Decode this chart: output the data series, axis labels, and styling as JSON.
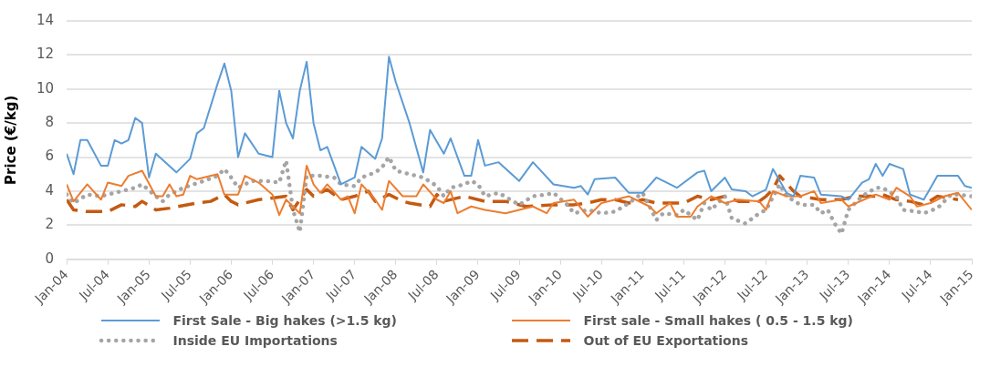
{
  "chart_data": {
    "type": "line",
    "ylabel": "Price (€/kg)",
    "ylim": [
      0,
      14
    ],
    "yticks": [
      0,
      2,
      4,
      6,
      8,
      10,
      12,
      14
    ],
    "xlim": [
      "2004-01",
      "2015-01"
    ],
    "xticks": [
      {
        "value": "2004-01",
        "label": "Jan-04"
      },
      {
        "value": "2004-07",
        "label": "Jul-04"
      },
      {
        "value": "2005-01",
        "label": "Jan-05"
      },
      {
        "value": "2005-07",
        "label": "Jul-05"
      },
      {
        "value": "2006-01",
        "label": "Jan-06"
      },
      {
        "value": "2006-07",
        "label": "Jul-06"
      },
      {
        "value": "2007-01",
        "label": "Jan-07"
      },
      {
        "value": "2007-07",
        "label": "Jul-07"
      },
      {
        "value": "2008-01",
        "label": "Jan-08"
      },
      {
        "value": "2008-07",
        "label": "Jul-08"
      },
      {
        "value": "2009-01",
        "label": "Jan-09"
      },
      {
        "value": "2009-07",
        "label": "Jul-09"
      },
      {
        "value": "2010-01",
        "label": "Jan-10"
      },
      {
        "value": "2010-07",
        "label": "Jul-10"
      },
      {
        "value": "2011-01",
        "label": "Jan-11"
      },
      {
        "value": "2011-07",
        "label": "Jul-11"
      },
      {
        "value": "2012-01",
        "label": "Jan-12"
      },
      {
        "value": "2012-07",
        "label": "Jul-12"
      },
      {
        "value": "2013-01",
        "label": "Jan-13"
      },
      {
        "value": "2013-07",
        "label": "Jul-13"
      },
      {
        "value": "2014-01",
        "label": "Jan-14"
      },
      {
        "value": "2014-07",
        "label": "Jul-14"
      },
      {
        "value": "2015-01",
        "label": "Jan-15"
      }
    ],
    "grid": "y",
    "legend": "bottom",
    "marker": "none",
    "series": [
      {
        "name": "First Sale - Big hakes (>1.5 kg)",
        "color": "#5b9bd5",
        "line_style": "solid",
        "x": [
          "2004-01",
          "2004-02",
          "2004-03",
          "2004-04",
          "2004-06",
          "2004-07",
          "2004-08",
          "2004-09",
          "2004-10",
          "2004-11",
          "2004-12",
          "2005-01",
          "2005-02",
          "2005-05",
          "2005-07",
          "2005-08",
          "2005-09",
          "2005-11",
          "2005-12",
          "2006-01",
          "2006-02",
          "2006-03",
          "2006-05",
          "2006-07",
          "2006-08",
          "2006-09",
          "2006-10",
          "2006-11",
          "2006-12",
          "2007-01",
          "2007-02",
          "2007-03",
          "2007-05",
          "2007-07",
          "2007-08",
          "2007-10",
          "2007-11",
          "2007-12",
          "2008-01",
          "2008-03",
          "2008-05",
          "2008-06",
          "2008-08",
          "2008-09",
          "2008-11",
          "2008-12",
          "2009-01",
          "2009-02",
          "2009-04",
          "2009-07",
          "2009-09",
          "2009-12",
          "2010-03",
          "2010-04",
          "2010-05",
          "2010-06",
          "2010-09",
          "2010-11",
          "2011-01",
          "2011-03",
          "2011-06",
          "2011-09",
          "2011-10",
          "2011-11",
          "2012-01",
          "2012-02",
          "2012-04",
          "2012-05",
          "2012-07",
          "2012-08",
          "2012-10",
          "2012-11",
          "2012-12",
          "2013-02",
          "2013-03",
          "2013-06",
          "2013-07",
          "2013-09",
          "2013-10",
          "2013-11",
          "2013-12",
          "2014-01",
          "2014-03",
          "2014-04",
          "2014-06",
          "2014-08",
          "2014-11",
          "2014-12",
          "2015-01"
        ],
        "values": [
          6.2,
          5.0,
          7.0,
          7.0,
          5.5,
          5.5,
          7.0,
          6.8,
          7.0,
          8.3,
          8.0,
          4.8,
          6.2,
          5.1,
          5.9,
          7.4,
          7.7,
          10.3,
          11.5,
          9.9,
          6.0,
          7.4,
          6.2,
          6.0,
          9.9,
          8.0,
          7.1,
          9.9,
          11.6,
          8.0,
          6.4,
          6.6,
          4.4,
          4.8,
          6.6,
          5.9,
          7.1,
          11.9,
          10.4,
          8.0,
          5.1,
          7.6,
          6.2,
          7.1,
          4.9,
          4.9,
          7.0,
          5.5,
          5.7,
          4.6,
          5.7,
          4.4,
          4.2,
          4.3,
          3.8,
          4.7,
          4.8,
          3.9,
          3.9,
          4.8,
          4.2,
          5.1,
          5.2,
          4.0,
          4.8,
          4.1,
          4.0,
          3.7,
          4.1,
          5.3,
          3.9,
          3.7,
          4.9,
          4.8,
          3.8,
          3.7,
          3.5,
          4.5,
          4.7,
          5.6,
          4.9,
          5.6,
          5.3,
          3.8,
          3.5,
          4.9,
          4.9,
          4.3,
          4.2
        ]
      },
      {
        "name": "First sale - Small hakes ( 0.5 - 1.5 kg)",
        "color": "#ed7d31",
        "line_style": "solid",
        "x": [
          "2004-01",
          "2004-02",
          "2004-04",
          "2004-06",
          "2004-07",
          "2004-09",
          "2004-10",
          "2004-12",
          "2005-02",
          "2005-03",
          "2005-04",
          "2005-05",
          "2005-06",
          "2005-07",
          "2005-08",
          "2005-11",
          "2005-12",
          "2006-02",
          "2006-03",
          "2006-05",
          "2006-07",
          "2006-08",
          "2006-09",
          "2006-11",
          "2006-12",
          "2007-01",
          "2007-02",
          "2007-03",
          "2007-05",
          "2007-06",
          "2007-07",
          "2007-08",
          "2007-10",
          "2007-11",
          "2007-12",
          "2008-02",
          "2008-04",
          "2008-05",
          "2008-07",
          "2008-08",
          "2008-09",
          "2008-10",
          "2008-12",
          "2009-02",
          "2009-05",
          "2009-09",
          "2009-11",
          "2009-12",
          "2010-03",
          "2010-05",
          "2010-07",
          "2010-09",
          "2010-11",
          "2011-01",
          "2011-02",
          "2011-03",
          "2011-05",
          "2011-06",
          "2011-08",
          "2011-09",
          "2011-11",
          "2012-01",
          "2012-03",
          "2012-06",
          "2012-07",
          "2012-08",
          "2012-10",
          "2012-12",
          "2013-02",
          "2013-03",
          "2013-06",
          "2013-07",
          "2013-11",
          "2014-01",
          "2014-02",
          "2014-04",
          "2014-05",
          "2014-07",
          "2014-09",
          "2014-11",
          "2015-01"
        ],
        "values": [
          4.4,
          3.4,
          4.4,
          3.5,
          4.5,
          4.3,
          4.9,
          5.2,
          3.7,
          3.7,
          4.4,
          3.7,
          3.8,
          4.9,
          4.7,
          5.0,
          3.8,
          3.8,
          4.9,
          4.5,
          3.8,
          2.6,
          3.5,
          2.7,
          5.5,
          4.4,
          3.9,
          4.4,
          3.5,
          3.7,
          2.7,
          4.4,
          3.5,
          2.9,
          4.6,
          3.7,
          3.7,
          4.4,
          3.5,
          3.3,
          4.0,
          2.7,
          3.1,
          2.9,
          2.7,
          3.1,
          2.7,
          3.3,
          3.5,
          2.5,
          3.3,
          3.5,
          3.7,
          3.3,
          3.1,
          2.7,
          3.3,
          2.5,
          2.5,
          3.1,
          3.7,
          3.3,
          3.5,
          3.4,
          2.9,
          4.0,
          3.7,
          3.7,
          4.0,
          3.3,
          3.5,
          3.1,
          3.8,
          3.5,
          4.2,
          3.7,
          3.1,
          3.3,
          3.7,
          3.9,
          2.9
        ]
      },
      {
        "name": "Inside EU Importations",
        "color": "#a5a5a5",
        "line_style": "dotted",
        "x": [
          "2004-01",
          "2004-02",
          "2004-04",
          "2004-06",
          "2004-09",
          "2004-11",
          "2004-12",
          "2005-02",
          "2005-03",
          "2005-04",
          "2005-06",
          "2005-09",
          "2005-11",
          "2005-12",
          "2006-01",
          "2006-02",
          "2006-04",
          "2006-06",
          "2006-08",
          "2006-09",
          "2006-10",
          "2006-11",
          "2006-12",
          "2007-02",
          "2007-04",
          "2007-05",
          "2007-07",
          "2007-08",
          "2007-10",
          "2007-11",
          "2007-12",
          "2008-01",
          "2008-03",
          "2008-05",
          "2008-07",
          "2008-08",
          "2008-09",
          "2008-11",
          "2008-12",
          "2009-01",
          "2009-02",
          "2009-04",
          "2009-07",
          "2009-09",
          "2009-11",
          "2009-12",
          "2010-02",
          "2010-03",
          "2010-05",
          "2010-07",
          "2010-09",
          "2010-11",
          "2011-01",
          "2011-03",
          "2011-04",
          "2011-06",
          "2011-07",
          "2011-09",
          "2011-10",
          "2011-11",
          "2012-01",
          "2012-02",
          "2012-04",
          "2012-06",
          "2012-07",
          "2012-09",
          "2012-10",
          "2012-12",
          "2013-02",
          "2013-03",
          "2013-04",
          "2013-05",
          "2013-06",
          "2013-07",
          "2013-09",
          "2013-11",
          "2013-12",
          "2014-02",
          "2014-03",
          "2014-05",
          "2014-06",
          "2014-08",
          "2014-10",
          "2014-11",
          "2015-01"
        ],
        "values": [
          3.8,
          3.3,
          3.8,
          3.7,
          4.0,
          4.2,
          4.4,
          3.7,
          3.4,
          3.8,
          4.2,
          4.6,
          4.9,
          5.3,
          4.8,
          4.2,
          4.6,
          4.6,
          4.5,
          5.8,
          2.9,
          1.6,
          4.9,
          4.9,
          4.8,
          4.4,
          4.3,
          4.8,
          5.1,
          5.4,
          6.0,
          5.2,
          5.0,
          4.8,
          4.3,
          3.7,
          4.2,
          4.4,
          4.6,
          4.4,
          3.7,
          3.9,
          3.2,
          3.7,
          3.8,
          3.9,
          3.2,
          2.7,
          2.9,
          2.7,
          2.8,
          3.3,
          3.9,
          2.3,
          2.7,
          2.6,
          2.9,
          2.3,
          3.3,
          2.9,
          3.7,
          2.4,
          2.1,
          2.7,
          2.9,
          4.4,
          3.7,
          3.2,
          3.2,
          2.7,
          2.9,
          2.1,
          1.5,
          2.9,
          3.7,
          4.2,
          4.2,
          3.7,
          2.9,
          2.8,
          2.7,
          3.0,
          3.8,
          3.8,
          3.7
        ]
      },
      {
        "name": "Out of EU Exportations",
        "color": "#c55a11",
        "line_style": "dashed",
        "x": [
          "2004-01",
          "2004-02",
          "2004-04",
          "2004-07",
          "2004-09",
          "2004-11",
          "2004-12",
          "2005-02",
          "2005-04",
          "2005-08",
          "2005-10",
          "2005-12",
          "2006-01",
          "2006-02",
          "2006-05",
          "2006-09",
          "2006-10",
          "2006-12",
          "2007-01",
          "2007-03",
          "2007-05",
          "2007-07",
          "2007-09",
          "2007-10",
          "2007-12",
          "2008-02",
          "2008-03",
          "2008-06",
          "2008-07",
          "2008-08",
          "2008-11",
          "2009-02",
          "2009-05",
          "2009-08",
          "2009-12",
          "2010-03",
          "2010-05",
          "2010-07",
          "2010-09",
          "2010-11",
          "2011-01",
          "2011-03",
          "2011-07",
          "2011-09",
          "2011-11",
          "2012-01",
          "2012-03",
          "2012-06",
          "2012-07",
          "2012-08",
          "2012-09",
          "2012-11",
          "2012-12",
          "2013-03",
          "2013-06",
          "2013-08",
          "2013-11",
          "2013-12",
          "2014-02",
          "2014-04",
          "2014-06",
          "2014-08",
          "2014-11"
        ],
        "values": [
          3.5,
          2.9,
          2.8,
          2.8,
          3.2,
          3.1,
          3.4,
          2.9,
          3.0,
          3.3,
          3.4,
          3.8,
          3.4,
          3.2,
          3.5,
          3.7,
          2.9,
          4.1,
          3.7,
          4.1,
          3.5,
          3.7,
          4.0,
          3.4,
          3.8,
          3.4,
          3.3,
          3.1,
          3.8,
          3.4,
          3.7,
          3.4,
          3.4,
          3.1,
          3.2,
          3.2,
          3.3,
          3.5,
          3.5,
          3.3,
          3.5,
          3.3,
          3.3,
          3.7,
          3.5,
          3.7,
          3.4,
          3.4,
          3.7,
          4.1,
          4.9,
          4.0,
          3.7,
          3.5,
          3.5,
          3.7,
          3.7,
          3.8,
          3.5,
          3.4,
          3.2,
          3.7,
          3.5
        ]
      }
    ]
  }
}
